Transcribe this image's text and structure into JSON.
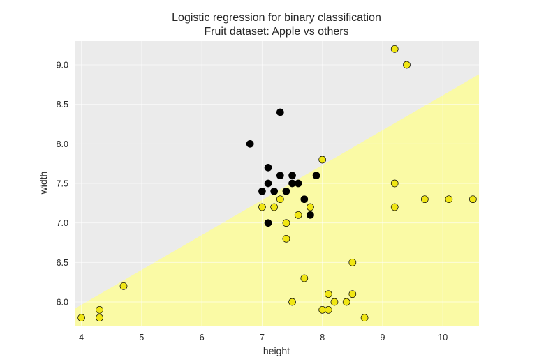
{
  "chart_data": {
    "type": "scatter",
    "title": "Logistic regression for binary classification",
    "subtitle": "Fruit dataset: Apple vs others",
    "xlabel": "height",
    "ylabel": "width",
    "xlim": [
      3.9,
      10.6
    ],
    "ylim": [
      5.7,
      9.3
    ],
    "xticks": [
      4,
      5,
      6,
      7,
      8,
      9,
      10
    ],
    "yticks": [
      6.0,
      6.5,
      7.0,
      7.5,
      8.0,
      8.5,
      9.0
    ],
    "grid": true,
    "decision_boundary": {
      "x": [
        3.9,
        10.6
      ],
      "y": [
        5.92,
        8.88
      ]
    },
    "region_colors": {
      "apple": "#ebebeb",
      "others": "#fafaa5"
    },
    "series": [
      {
        "color": "#000000",
        "points": [
          [
            6.8,
            8.0
          ],
          [
            7.3,
            8.4
          ],
          [
            7.1,
            7.7
          ],
          [
            7.1,
            7.5
          ],
          [
            7.3,
            7.6
          ],
          [
            7.5,
            7.6
          ],
          [
            7.5,
            7.5
          ],
          [
            7.6,
            7.5
          ],
          [
            7.9,
            7.6
          ],
          [
            7.0,
            7.4
          ],
          [
            7.2,
            7.4
          ],
          [
            7.4,
            7.4
          ],
          [
            7.7,
            7.3
          ],
          [
            7.1,
            7.0
          ],
          [
            7.8,
            7.1
          ]
        ]
      },
      {
        "color": "#f0e614",
        "points": [
          [
            9.2,
            9.2
          ],
          [
            9.4,
            9.0
          ],
          [
            8.0,
            7.8
          ],
          [
            9.2,
            7.5
          ],
          [
            7.3,
            7.3
          ],
          [
            9.7,
            7.3
          ],
          [
            10.1,
            7.3
          ],
          [
            10.5,
            7.3
          ],
          [
            9.2,
            7.2
          ],
          [
            7.0,
            7.2
          ],
          [
            7.2,
            7.2
          ],
          [
            7.8,
            7.2
          ],
          [
            7.6,
            7.1
          ],
          [
            7.4,
            7.0
          ],
          [
            7.4,
            6.8
          ],
          [
            8.5,
            6.5
          ],
          [
            7.7,
            6.3
          ],
          [
            4.7,
            6.2
          ],
          [
            8.1,
            6.1
          ],
          [
            8.5,
            6.1
          ],
          [
            7.5,
            6.0
          ],
          [
            8.2,
            6.0
          ],
          [
            8.4,
            6.0
          ],
          [
            4.3,
            5.9
          ],
          [
            8.0,
            5.9
          ],
          [
            8.1,
            5.9
          ],
          [
            4.0,
            5.8
          ],
          [
            4.3,
            5.8
          ],
          [
            8.7,
            5.8
          ]
        ]
      }
    ]
  }
}
